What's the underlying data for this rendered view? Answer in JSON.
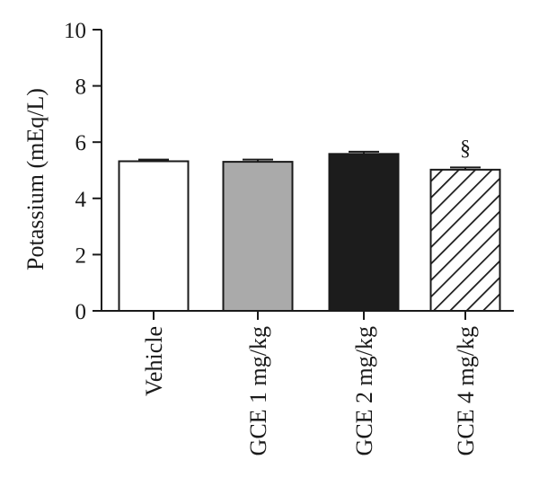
{
  "chart_data": {
    "type": "bar",
    "ylabel": "Potassium (mEq/L)",
    "xlabel": "",
    "ylim": [
      0,
      10
    ],
    "yticks": [
      0,
      2,
      4,
      6,
      8,
      10
    ],
    "grid": false,
    "categories": [
      "Vehicle",
      "GCE 1 mg/kg",
      "GCE 2 mg/kg",
      "GCE 4 mg/kg"
    ],
    "values": [
      5.32,
      5.3,
      5.58,
      5.02
    ],
    "errors": [
      0.06,
      0.08,
      0.08,
      0.08
    ],
    "fills": [
      "white",
      "gray",
      "black",
      "hatched"
    ],
    "colors": {
      "white": "#ffffff",
      "gray": "#aaaaaa",
      "black": "#1c1c1c",
      "stroke": "#1a1a1a"
    },
    "annotations": [
      {
        "category": "GCE 4 mg/kg",
        "text": "§"
      }
    ]
  }
}
